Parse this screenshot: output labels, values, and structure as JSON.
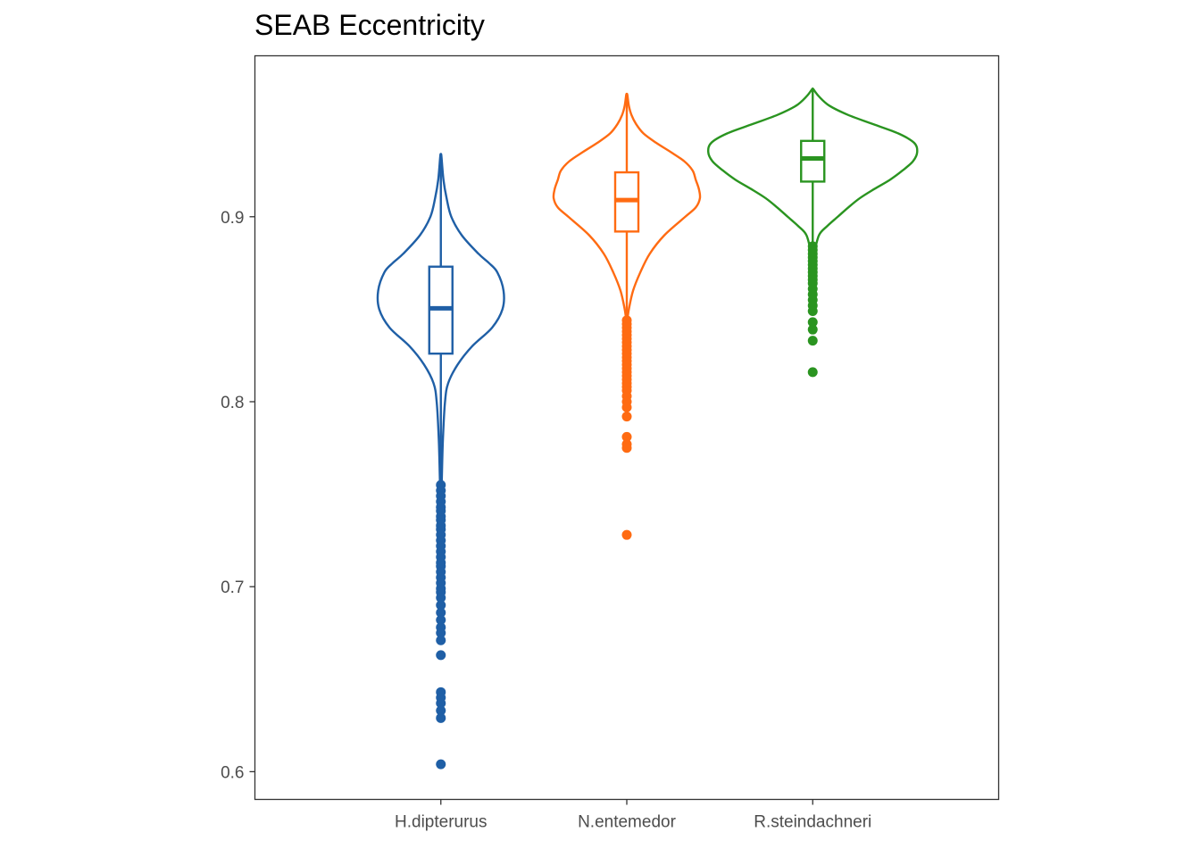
{
  "chart_data": {
    "type": "violin",
    "title": "SEAB Eccentricity",
    "xlabel": "",
    "ylabel": "",
    "ylim": [
      0.585,
      0.987
    ],
    "yticks": [
      0.6,
      0.7,
      0.8,
      0.9
    ],
    "ytick_labels": [
      "0.6",
      "0.7",
      "0.8",
      "0.9"
    ],
    "grid": false,
    "legend": "none",
    "categories": [
      "H.dipterurus",
      "N.entemedor",
      "R.steindachneri"
    ],
    "series": [
      {
        "category": "H.dipterurus",
        "color": "#1f5fa6",
        "violin_min": 0.748,
        "violin_max": 0.933,
        "density_profile": [
          [
            0.748,
            0.005
          ],
          [
            0.76,
            0.01
          ],
          [
            0.78,
            0.02
          ],
          [
            0.8,
            0.04
          ],
          [
            0.81,
            0.07
          ],
          [
            0.82,
            0.16
          ],
          [
            0.83,
            0.3
          ],
          [
            0.84,
            0.49
          ],
          [
            0.85,
            0.59
          ],
          [
            0.86,
            0.6
          ],
          [
            0.87,
            0.54
          ],
          [
            0.875,
            0.46
          ],
          [
            0.88,
            0.36
          ],
          [
            0.89,
            0.2
          ],
          [
            0.9,
            0.1
          ],
          [
            0.91,
            0.055
          ],
          [
            0.92,
            0.025
          ],
          [
            0.933,
            0.005
          ]
        ],
        "box": {
          "q1": 0.826,
          "median": 0.8505,
          "q3": 0.873,
          "whisker_low": 0.756,
          "whisker_high": 0.933
        },
        "outliers": [
          0.755,
          0.752,
          0.749,
          0.746,
          0.743,
          0.741,
          0.738,
          0.736,
          0.733,
          0.731,
          0.728,
          0.725,
          0.722,
          0.719,
          0.716,
          0.713,
          0.711,
          0.708,
          0.705,
          0.702,
          0.699,
          0.697,
          0.694,
          0.69,
          0.686,
          0.682,
          0.678,
          0.675,
          0.671,
          0.663,
          0.643,
          0.64,
          0.637,
          0.633,
          0.629,
          0.604
        ]
      },
      {
        "category": "N.entemedor",
        "color": "#ff6b12",
        "violin_min": 0.844,
        "violin_max": 0.966,
        "density_profile": [
          [
            0.844,
            0.005
          ],
          [
            0.85,
            0.02
          ],
          [
            0.86,
            0.06
          ],
          [
            0.87,
            0.13
          ],
          [
            0.88,
            0.22
          ],
          [
            0.89,
            0.36
          ],
          [
            0.9,
            0.56
          ],
          [
            0.905,
            0.66
          ],
          [
            0.91,
            0.7
          ],
          [
            0.915,
            0.69
          ],
          [
            0.92,
            0.66
          ],
          [
            0.925,
            0.63
          ],
          [
            0.93,
            0.55
          ],
          [
            0.935,
            0.42
          ],
          [
            0.94,
            0.28
          ],
          [
            0.945,
            0.16
          ],
          [
            0.95,
            0.09
          ],
          [
            0.955,
            0.045
          ],
          [
            0.96,
            0.02
          ],
          [
            0.966,
            0.005
          ]
        ],
        "box": {
          "q1": 0.892,
          "median": 0.909,
          "q3": 0.924,
          "whisker_low": 0.845,
          "whisker_high": 0.966
        },
        "outliers": [
          0.844,
          0.842,
          0.84,
          0.838,
          0.836,
          0.834,
          0.832,
          0.83,
          0.828,
          0.826,
          0.824,
          0.822,
          0.82,
          0.818,
          0.816,
          0.814,
          0.812,
          0.81,
          0.808,
          0.806,
          0.803,
          0.8,
          0.797,
          0.792,
          0.781,
          0.777,
          0.775,
          0.728
        ]
      },
      {
        "category": "R.steindachneri",
        "color": "#2a9420",
        "violin_min": 0.874,
        "violin_max": 0.969,
        "density_profile": [
          [
            0.874,
            0.005
          ],
          [
            0.88,
            0.015
          ],
          [
            0.89,
            0.06
          ],
          [
            0.895,
            0.14
          ],
          [
            0.9,
            0.24
          ],
          [
            0.905,
            0.34
          ],
          [
            0.91,
            0.45
          ],
          [
            0.915,
            0.59
          ],
          [
            0.92,
            0.74
          ],
          [
            0.925,
            0.86
          ],
          [
            0.93,
            0.96
          ],
          [
            0.935,
            1.0
          ],
          [
            0.94,
            0.97
          ],
          [
            0.945,
            0.82
          ],
          [
            0.95,
            0.58
          ],
          [
            0.955,
            0.34
          ],
          [
            0.96,
            0.16
          ],
          [
            0.965,
            0.06
          ],
          [
            0.969,
            0.005
          ]
        ],
        "box": {
          "q1": 0.919,
          "median": 0.9315,
          "q3": 0.941,
          "whisker_low": 0.884,
          "whisker_high": 0.969
        },
        "outliers": [
          0.884,
          0.882,
          0.88,
          0.878,
          0.876,
          0.874,
          0.872,
          0.87,
          0.868,
          0.866,
          0.864,
          0.861,
          0.858,
          0.855,
          0.852,
          0.849,
          0.843,
          0.839,
          0.833,
          0.816
        ]
      }
    ]
  }
}
